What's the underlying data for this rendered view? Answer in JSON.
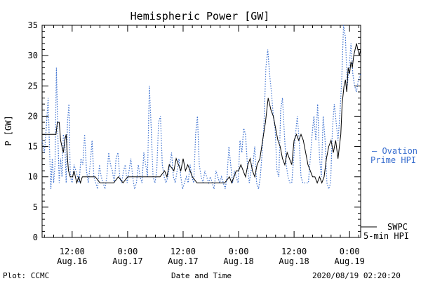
{
  "chart_data": {
    "type": "line",
    "title": "Hemispheric Power [GW]",
    "ylabel": "P [GW]",
    "xlabel": "Date and Time",
    "ylim": [
      0,
      35
    ],
    "y_ticks": [
      0,
      5,
      10,
      15,
      20,
      25,
      30,
      35
    ],
    "xlim_hours_from_aug15_0000": [
      5.5,
      74.4
    ],
    "x_ticks": [
      {
        "hour": 12,
        "time": "12:00",
        "date": "Aug.16"
      },
      {
        "hour": 24,
        "time": "0:00",
        "date": "Aug.17"
      },
      {
        "hour": 36,
        "time": "12:00",
        "date": "Aug.17"
      },
      {
        "hour": 48,
        "time": "0:00",
        "date": "Aug.18"
      },
      {
        "hour": 60,
        "time": "12:00",
        "date": "Aug.18"
      },
      {
        "hour": 72,
        "time": "0:00",
        "date": "Aug.19"
      }
    ],
    "series": [
      {
        "name": "SWPC 5-min HPI",
        "legend_lines": [
          "SWPC",
          "5-min HPI"
        ],
        "color": "#000000",
        "style": "solid",
        "points": [
          [
            5.5,
            17
          ],
          [
            8.5,
            17
          ],
          [
            8.8,
            19
          ],
          [
            9.2,
            19
          ],
          [
            9.5,
            16
          ],
          [
            9.8,
            15
          ],
          [
            10.1,
            14
          ],
          [
            10.4,
            16
          ],
          [
            10.7,
            17
          ],
          [
            11.0,
            13
          ],
          [
            11.2,
            11
          ],
          [
            11.6,
            10
          ],
          [
            12.1,
            10
          ],
          [
            12.4,
            11
          ],
          [
            12.7,
            10
          ],
          [
            13.0,
            9
          ],
          [
            13.4,
            10
          ],
          [
            13.8,
            9
          ],
          [
            14.2,
            10
          ],
          [
            14.6,
            10
          ],
          [
            15.0,
            10
          ],
          [
            16.0,
            10
          ],
          [
            17.0,
            10
          ],
          [
            18.0,
            9
          ],
          [
            19.0,
            9
          ],
          [
            20.0,
            9
          ],
          [
            21.0,
            9
          ],
          [
            22.0,
            10
          ],
          [
            23.0,
            9
          ],
          [
            24.0,
            10
          ],
          [
            25.0,
            10
          ],
          [
            26.0,
            10
          ],
          [
            27.0,
            10
          ],
          [
            28.0,
            10
          ],
          [
            29.0,
            10
          ],
          [
            30.0,
            10
          ],
          [
            31.0,
            10
          ],
          [
            32.0,
            11
          ],
          [
            32.5,
            10
          ],
          [
            33.0,
            12
          ],
          [
            34.0,
            11
          ],
          [
            34.5,
            13
          ],
          [
            35.0,
            12
          ],
          [
            35.5,
            11
          ],
          [
            36.0,
            13
          ],
          [
            36.5,
            11
          ],
          [
            37.0,
            12
          ],
          [
            37.5,
            11
          ],
          [
            38.0,
            10
          ],
          [
            39.0,
            9
          ],
          [
            40.0,
            9
          ],
          [
            41.0,
            9
          ],
          [
            42.0,
            9
          ],
          [
            43.0,
            9
          ],
          [
            44.0,
            9
          ],
          [
            45.0,
            9
          ],
          [
            46.0,
            10
          ],
          [
            46.5,
            9
          ],
          [
            47.0,
            10
          ],
          [
            47.5,
            11
          ],
          [
            48.0,
            11
          ],
          [
            48.5,
            12
          ],
          [
            49.0,
            11
          ],
          [
            49.5,
            10
          ],
          [
            50.0,
            12
          ],
          [
            50.5,
            13
          ],
          [
            51.0,
            11
          ],
          [
            51.5,
            10
          ],
          [
            52.0,
            12
          ],
          [
            52.6,
            13
          ],
          [
            53.2,
            16
          ],
          [
            53.8,
            19
          ],
          [
            54.4,
            23
          ],
          [
            55.0,
            21
          ],
          [
            55.5,
            20
          ],
          [
            56.0,
            18
          ],
          [
            56.5,
            16
          ],
          [
            57.0,
            15
          ],
          [
            57.5,
            13
          ],
          [
            58.0,
            12
          ],
          [
            58.5,
            14
          ],
          [
            59.0,
            13
          ],
          [
            59.5,
            12
          ],
          [
            60.0,
            16
          ],
          [
            60.5,
            17
          ],
          [
            61.0,
            16
          ],
          [
            61.5,
            17
          ],
          [
            62.0,
            16
          ],
          [
            62.5,
            14
          ],
          [
            63.0,
            12
          ],
          [
            63.5,
            11
          ],
          [
            64.0,
            10
          ],
          [
            64.5,
            10
          ],
          [
            65.0,
            9
          ],
          [
            65.5,
            10
          ],
          [
            66.0,
            9
          ],
          [
            66.5,
            10
          ],
          [
            67.0,
            13
          ],
          [
            67.5,
            15
          ],
          [
            68.0,
            16
          ],
          [
            68.5,
            14
          ],
          [
            69.0,
            16
          ],
          [
            69.5,
            13
          ],
          [
            69.8,
            15
          ],
          [
            70.1,
            17
          ],
          [
            70.4,
            22
          ],
          [
            70.8,
            25
          ],
          [
            71.1,
            26
          ],
          [
            71.4,
            24
          ],
          [
            71.7,
            28
          ],
          [
            72.0,
            27
          ],
          [
            72.3,
            29
          ],
          [
            72.6,
            28
          ],
          [
            72.9,
            30
          ],
          [
            73.2,
            31
          ],
          [
            73.5,
            32
          ],
          [
            73.8,
            31
          ],
          [
            74.1,
            30
          ],
          [
            74.4,
            31
          ]
        ]
      },
      {
        "name": "Ovation Prime HPI",
        "legend_lines": [
          "Ovation",
          "Prime HPI"
        ],
        "color": "#3a6fcf",
        "style": "dotted",
        "points": [
          [
            5.5,
            16
          ],
          [
            6.0,
            14
          ],
          [
            6.4,
            18
          ],
          [
            6.8,
            23
          ],
          [
            7.1,
            15
          ],
          [
            7.4,
            8
          ],
          [
            7.7,
            13
          ],
          [
            8.0,
            9
          ],
          [
            8.3,
            12
          ],
          [
            8.6,
            28
          ],
          [
            8.9,
            17
          ],
          [
            9.2,
            9
          ],
          [
            9.5,
            13
          ],
          [
            9.8,
            10
          ],
          [
            10.1,
            17
          ],
          [
            10.4,
            16
          ],
          [
            10.7,
            9
          ],
          [
            11.0,
            19
          ],
          [
            11.3,
            22
          ],
          [
            11.6,
            10
          ],
          [
            12.0,
            9
          ],
          [
            12.4,
            12
          ],
          [
            12.8,
            11
          ],
          [
            13.2,
            10
          ],
          [
            13.5,
            9
          ],
          [
            13.9,
            13
          ],
          [
            14.3,
            12
          ],
          [
            14.7,
            17
          ],
          [
            15.1,
            11
          ],
          [
            15.5,
            9
          ],
          [
            15.9,
            12
          ],
          [
            16.3,
            16
          ],
          [
            16.7,
            10
          ],
          [
            17.1,
            9
          ],
          [
            17.5,
            8
          ],
          [
            17.9,
            12
          ],
          [
            18.3,
            10
          ],
          [
            18.7,
            9
          ],
          [
            19.1,
            8
          ],
          [
            19.5,
            10
          ],
          [
            19.9,
            14
          ],
          [
            20.3,
            12
          ],
          [
            20.7,
            11
          ],
          [
            21.1,
            9
          ],
          [
            21.5,
            13
          ],
          [
            21.9,
            14
          ],
          [
            22.3,
            10
          ],
          [
            22.7,
            9
          ],
          [
            23.1,
            11
          ],
          [
            23.5,
            12
          ],
          [
            23.9,
            9
          ],
          [
            24.3,
            11
          ],
          [
            24.7,
            13
          ],
          [
            25.1,
            10
          ],
          [
            25.5,
            8
          ],
          [
            25.9,
            9
          ],
          [
            26.3,
            12
          ],
          [
            26.7,
            10
          ],
          [
            27.1,
            9
          ],
          [
            27.5,
            14
          ],
          [
            27.9,
            12
          ],
          [
            28.3,
            10
          ],
          [
            28.7,
            25
          ],
          [
            29.1,
            18
          ],
          [
            29.5,
            10
          ],
          [
            29.9,
            9
          ],
          [
            30.3,
            11
          ],
          [
            30.7,
            19
          ],
          [
            31.1,
            20
          ],
          [
            31.5,
            12
          ],
          [
            31.9,
            10
          ],
          [
            32.3,
            9
          ],
          [
            32.7,
            10
          ],
          [
            33.1,
            12
          ],
          [
            33.5,
            14
          ],
          [
            33.9,
            10
          ],
          [
            34.3,
            9
          ],
          [
            34.7,
            11
          ],
          [
            35.1,
            13
          ],
          [
            35.5,
            10
          ],
          [
            35.9,
            8
          ],
          [
            36.3,
            9
          ],
          [
            36.7,
            10
          ],
          [
            37.1,
            9
          ],
          [
            37.5,
            12
          ],
          [
            37.9,
            10
          ],
          [
            38.3,
            9
          ],
          [
            38.7,
            17
          ],
          [
            39.1,
            20
          ],
          [
            39.5,
            12
          ],
          [
            39.9,
            10
          ],
          [
            40.3,
            9
          ],
          [
            40.7,
            11
          ],
          [
            41.1,
            10
          ],
          [
            41.5,
            9
          ],
          [
            41.9,
            10
          ],
          [
            42.3,
            9
          ],
          [
            42.7,
            8
          ],
          [
            43.1,
            11
          ],
          [
            43.5,
            10
          ],
          [
            43.9,
            9
          ],
          [
            44.3,
            10
          ],
          [
            44.7,
            9
          ],
          [
            45.1,
            8
          ],
          [
            45.5,
            10
          ],
          [
            45.9,
            15
          ],
          [
            46.3,
            12
          ],
          [
            46.7,
            9
          ],
          [
            47.1,
            11
          ],
          [
            47.5,
            10
          ],
          [
            47.9,
            9
          ],
          [
            48.3,
            16
          ],
          [
            48.7,
            14
          ],
          [
            49.1,
            18
          ],
          [
            49.5,
            17
          ],
          [
            49.9,
            12
          ],
          [
            50.3,
            9
          ],
          [
            50.7,
            11
          ],
          [
            51.1,
            12
          ],
          [
            51.5,
            15
          ],
          [
            51.9,
            9
          ],
          [
            52.3,
            8
          ],
          [
            52.7,
            10
          ],
          [
            53.1,
            14
          ],
          [
            53.5,
            19
          ],
          [
            53.9,
            28
          ],
          [
            54.3,
            31
          ],
          [
            54.7,
            27
          ],
          [
            55.1,
            24
          ],
          [
            55.5,
            20
          ],
          [
            55.9,
            18
          ],
          [
            56.3,
            11
          ],
          [
            56.7,
            10
          ],
          [
            57.1,
            21
          ],
          [
            57.5,
            23
          ],
          [
            57.9,
            17
          ],
          [
            58.3,
            12
          ],
          [
            58.7,
            10
          ],
          [
            59.1,
            9
          ],
          [
            59.5,
            9
          ],
          [
            59.9,
            13
          ],
          [
            60.3,
            17
          ],
          [
            60.7,
            20
          ],
          [
            61.1,
            16
          ],
          [
            61.5,
            10
          ],
          [
            61.9,
            9
          ],
          [
            62.3,
            9
          ],
          [
            62.7,
            9
          ],
          [
            63.1,
            9
          ],
          [
            63.5,
            13
          ],
          [
            63.9,
            17
          ],
          [
            64.3,
            20
          ],
          [
            64.7,
            16
          ],
          [
            65.1,
            22
          ],
          [
            65.5,
            13
          ],
          [
            65.9,
            10
          ],
          [
            66.3,
            20
          ],
          [
            66.7,
            16
          ],
          [
            67.1,
            9
          ],
          [
            67.5,
            8
          ],
          [
            67.9,
            9
          ],
          [
            68.3,
            18
          ],
          [
            68.7,
            22
          ],
          [
            69.1,
            19
          ],
          [
            69.5,
            16
          ],
          [
            69.9,
            20
          ],
          [
            70.3,
            26
          ],
          [
            70.7,
            35
          ],
          [
            71.1,
            33
          ],
          [
            71.5,
            25
          ],
          [
            71.9,
            28
          ],
          [
            72.3,
            32
          ],
          [
            72.7,
            27
          ],
          [
            73.1,
            25
          ],
          [
            73.5,
            24
          ],
          [
            73.9,
            26
          ],
          [
            74.4,
            27
          ]
        ]
      }
    ]
  },
  "footer": {
    "left": "Plot: CCMC",
    "center": "Date and Time",
    "right": "2020/08/19 02:20:20"
  },
  "legend": {
    "ovation_line1": "— Ovation",
    "ovation_line2": "Prime HPI",
    "swpc_line1": "SWPC",
    "swpc_line2": "5-min HPI"
  }
}
